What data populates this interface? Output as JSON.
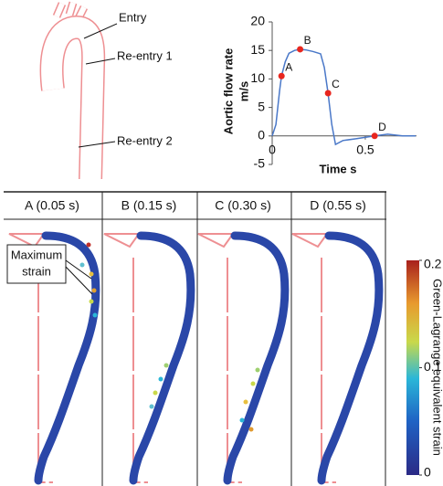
{
  "chart_data": {
    "type": "line",
    "ylabel": "Aortic flow rate",
    "yunit": "m/s",
    "xlabel": "Time s",
    "x": [
      0,
      0.02,
      0.04,
      0.05,
      0.07,
      0.09,
      0.12,
      0.15,
      0.18,
      0.22,
      0.26,
      0.28,
      0.3,
      0.32,
      0.34,
      0.38,
      0.45,
      0.55,
      0.62,
      0.7,
      0.77
    ],
    "series": [
      {
        "color": "#4a78c8",
        "values": [
          0,
          2,
          8,
          10.5,
          13,
          14.5,
          15,
          15.2,
          15.1,
          14.8,
          14.4,
          12,
          7.5,
          2,
          -1.5,
          -0.8,
          -0.5,
          0,
          0.3,
          0,
          0
        ]
      }
    ],
    "points": [
      {
        "label": "A",
        "x": 0.05,
        "y": 10.5
      },
      {
        "label": "B",
        "x": 0.15,
        "y": 15.2
      },
      {
        "label": "C",
        "x": 0.3,
        "y": 7.5
      },
      {
        "label": "D",
        "x": 0.55,
        "y": 0
      }
    ],
    "point_color": "#e8261e",
    "xlim": [
      0,
      0.775
    ],
    "xticks": [
      0,
      0.5
    ],
    "ylim": [
      -5,
      20
    ],
    "yticks": [
      -5,
      0,
      5,
      10,
      15,
      20
    ]
  },
  "diagram": {
    "labels": [
      "Entry",
      "Re-entry 1",
      "Re-entry 2"
    ]
  },
  "panels": [
    "A (0.05 s)",
    "B (0.15 s)",
    "C (0.30 s)",
    "D (0.55 s)"
  ],
  "annotation": [
    "Maximum",
    "strain"
  ],
  "colorbar": {
    "label": "Green-Lagrange equivalent strain",
    "lim": [
      0,
      0.2
    ],
    "ticks": [
      0,
      0.1,
      0.2
    ]
  }
}
